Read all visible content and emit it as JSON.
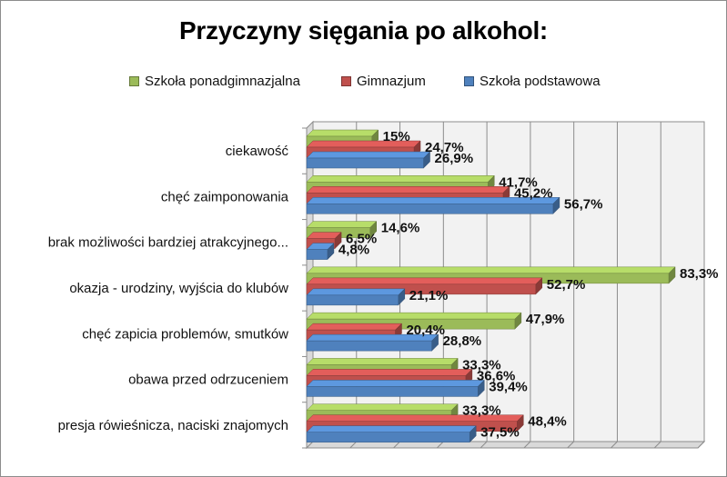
{
  "chart_data": {
    "type": "bar",
    "orientation": "horizontal",
    "title": "Przyczyny sięgania po alkohol:",
    "categories": [
      "ciekawość",
      "chęć zaimponowania",
      "brak możliwości bardziej atrakcyjnego...",
      "okazja - urodziny, wyjścia do klubów",
      "chęć zapicia problemów, smutków",
      "obawa przed odrzuceniem",
      "presja rówieśnicza, naciski znajomych"
    ],
    "series": [
      {
        "name": "Szkoła ponadgimnazjalna",
        "color": "#9bbb59",
        "values": [
          15,
          41.7,
          14.6,
          83.3,
          47.9,
          33.3,
          33.3
        ],
        "labels": [
          "15%",
          "41,7%",
          "14,6%",
          "83,3%",
          "47,9%",
          "33,3%",
          "33,3%"
        ]
      },
      {
        "name": "Gimnazjum",
        "color": "#c0504d",
        "values": [
          24.7,
          45.2,
          6.5,
          52.7,
          20.4,
          36.6,
          48.4
        ],
        "labels": [
          "24,7%",
          "45,2%",
          "6,5%",
          "52,7%",
          "20,4%",
          "36,6%",
          "48,4%"
        ]
      },
      {
        "name": "Szkoła podstawowa",
        "color": "#4f81bd",
        "values": [
          26.9,
          56.7,
          4.8,
          21.1,
          28.8,
          39.4,
          37.5
        ],
        "labels": [
          "26,9%",
          "56,7%",
          "4,8%",
          "21,1%",
          "28,8%",
          "39,4%",
          "37,5%"
        ]
      }
    ],
    "legend_order": [
      "Szkoła ponadgimnazjalna",
      "Gimnazjum",
      "Szkoła podstawowa"
    ],
    "xlim": [
      0,
      90
    ],
    "grid": true,
    "legend_position": "top",
    "style": "3d-bar"
  }
}
